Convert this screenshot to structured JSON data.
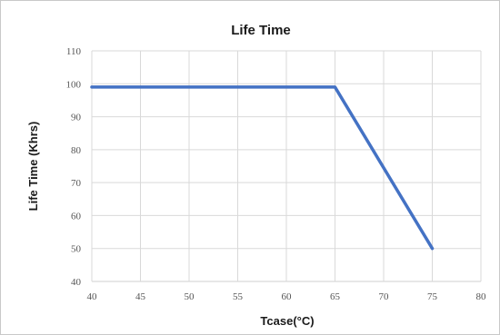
{
  "chart_data": {
    "type": "line",
    "title": "Life Time",
    "xlabel": "Tcase(°C)",
    "ylabel": "Life Time (Khrs)",
    "xlim": [
      40,
      80
    ],
    "ylim": [
      40,
      110
    ],
    "xticks": [
      40,
      45,
      50,
      55,
      60,
      65,
      70,
      75,
      80
    ],
    "yticks": [
      40,
      50,
      60,
      70,
      80,
      90,
      100,
      110
    ],
    "grid": true,
    "series": [
      {
        "color": "#4472c4",
        "x": [
          40,
          65,
          75
        ],
        "y": [
          99,
          99,
          50
        ]
      }
    ]
  }
}
